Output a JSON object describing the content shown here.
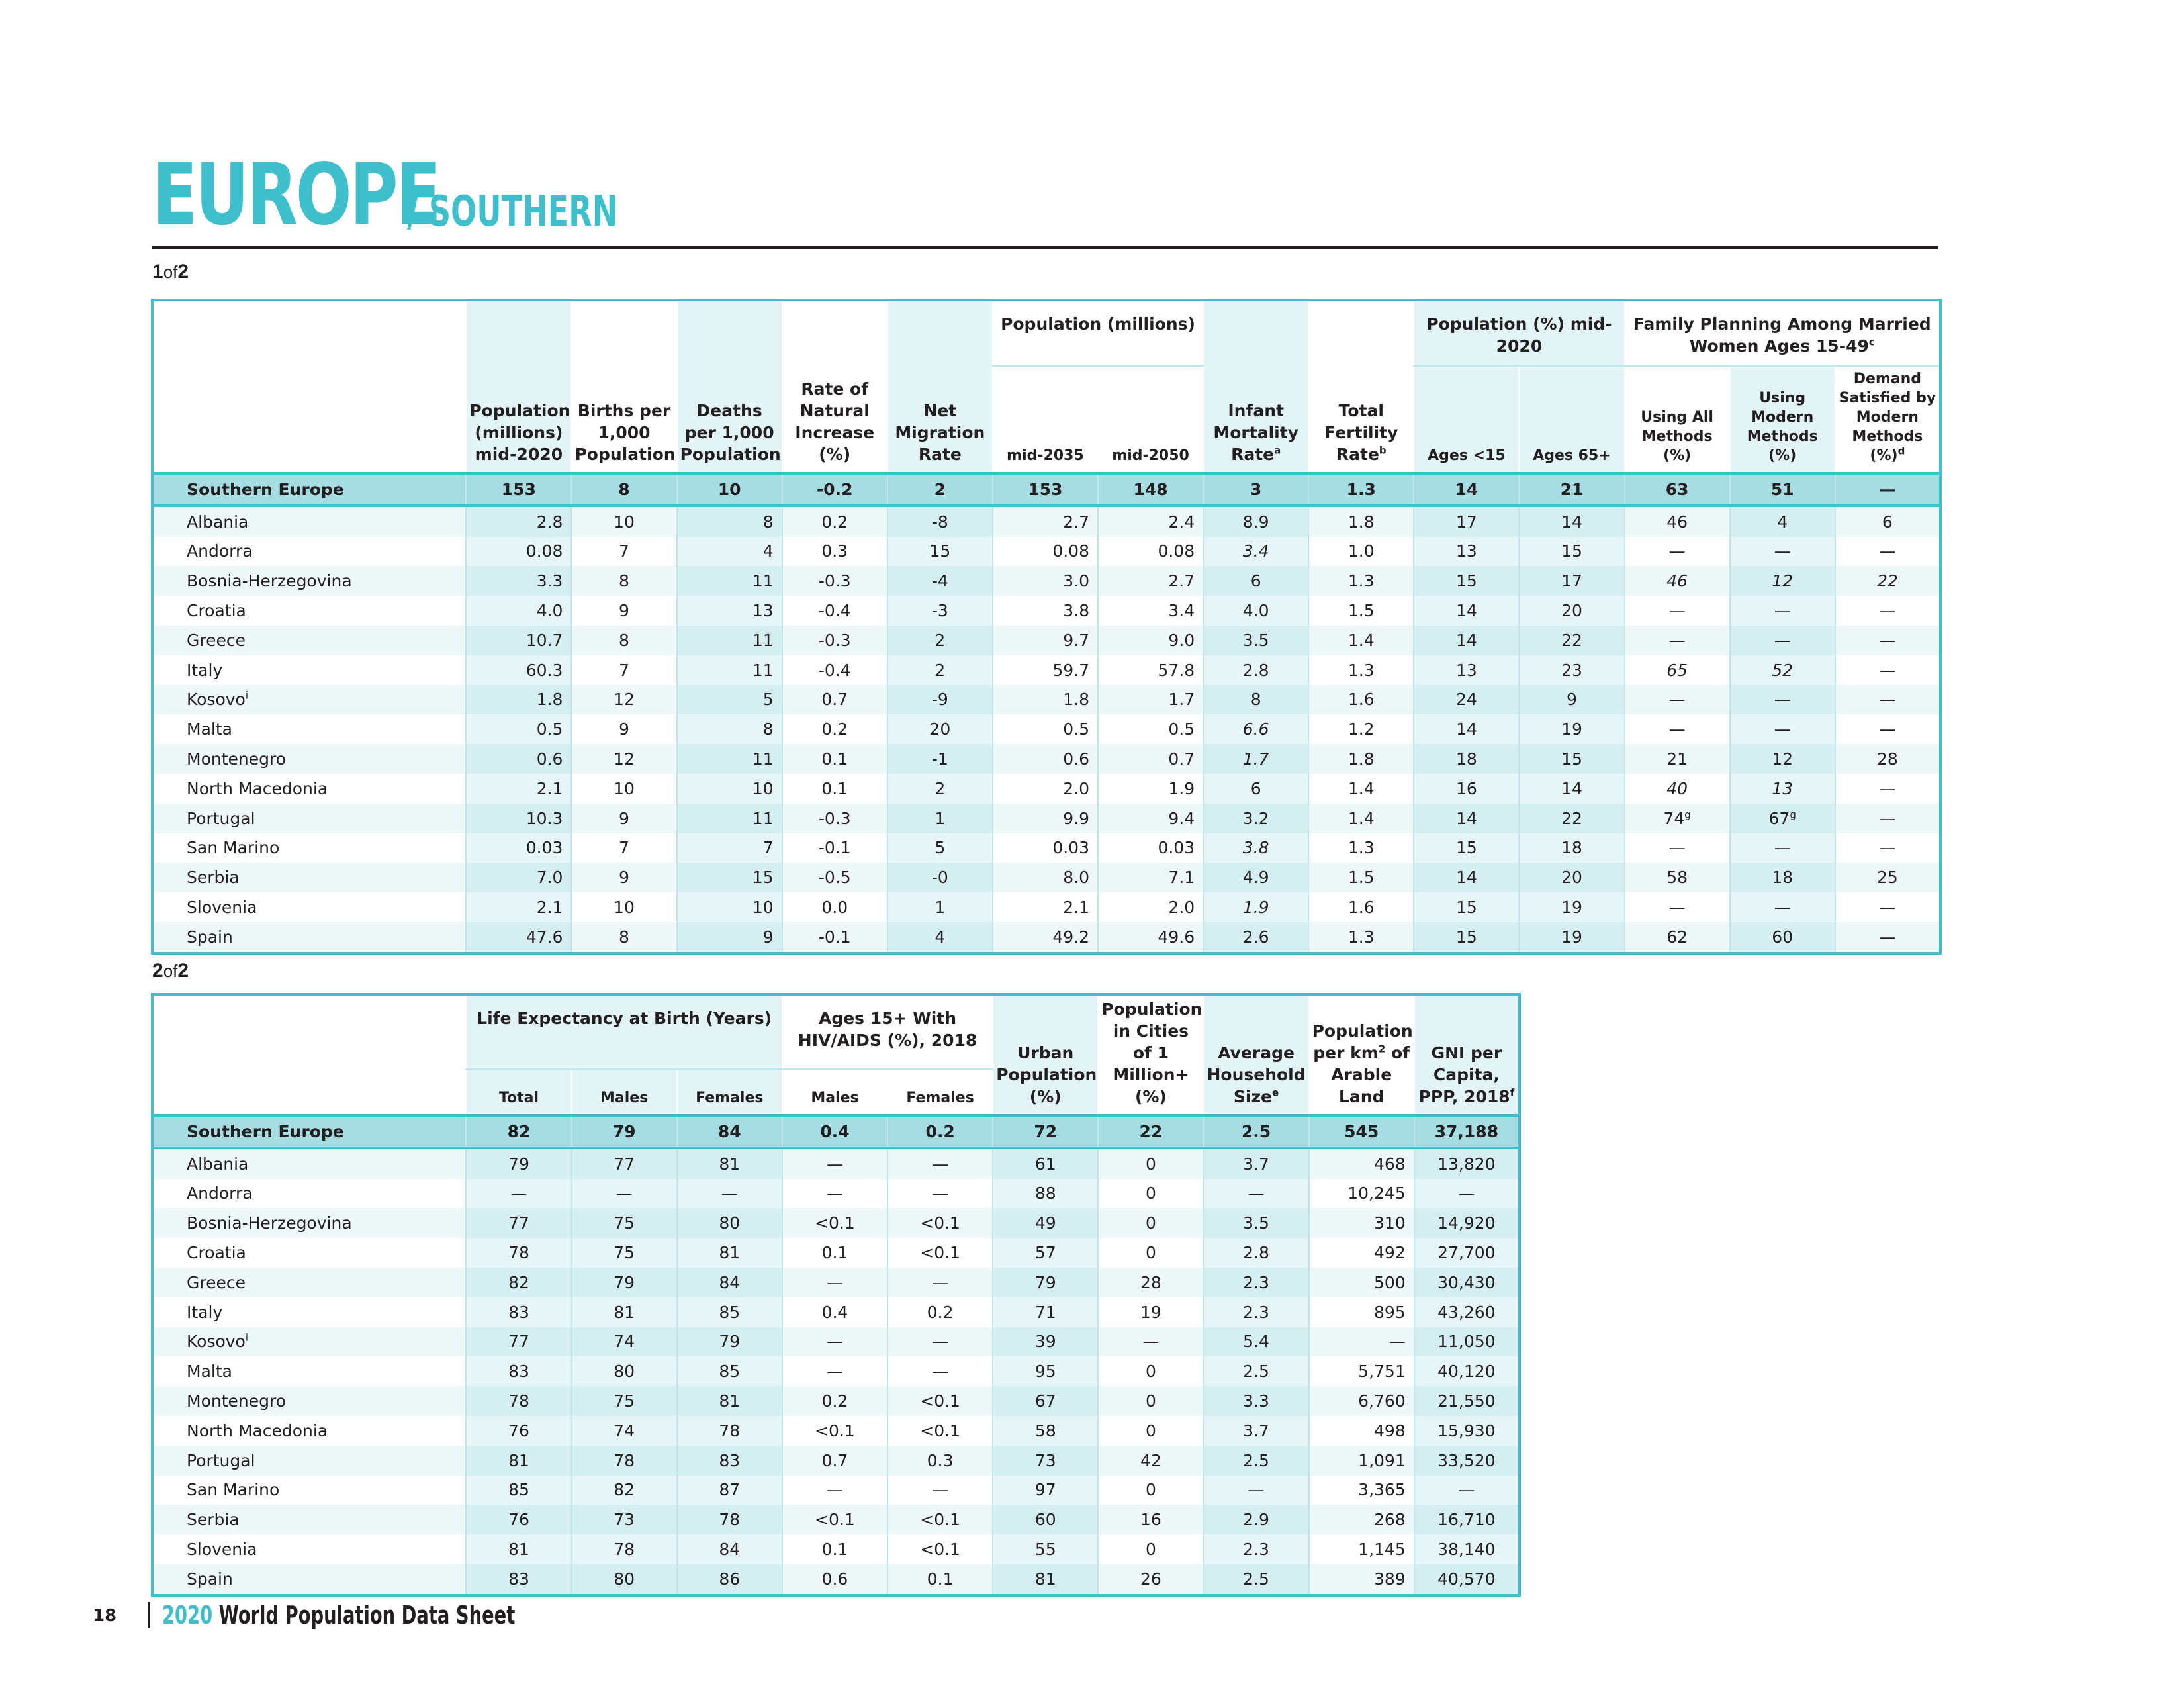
{
  "title": {
    "main": "EUROPE",
    "sub": "/ SOUTHERN"
  },
  "part1": {
    "num": "1",
    "of": "of",
    "total": "2"
  },
  "part2": {
    "num": "2",
    "of": "of",
    "total": "2"
  },
  "table1": {
    "headers": {
      "pop": "Population (millions) mid-2020",
      "births": "Births per 1,000 Population",
      "deaths": "Deaths per 1,000 Population",
      "rni": "Rate of Natural Increase (%)",
      "migration": "Net Migration Rate",
      "proj_group": "Population (millions)",
      "p2035": "mid-2035",
      "p2050": "mid-2050",
      "imr": "Infant Mortality Rate",
      "imr_sup": "a",
      "tfr": "Total Fertility Rate",
      "tfr_sup": "b",
      "age_group": "Population (%) mid-2020",
      "u15": "Ages <15",
      "o65": "Ages 65+",
      "fp_group": "Family Planning Among Married Women Ages 15-49",
      "fp_sup": "c",
      "all": "Using All Methods (%)",
      "modern": "Using Modern Methods (%)",
      "demand": "Demand Satisfied by Modern Methods (%)",
      "demand_sup": "d"
    },
    "region": [
      "Southern Europe",
      "153",
      "8",
      "10",
      "-0.2",
      "2",
      "153",
      "148",
      "3",
      "1.3",
      "14",
      "21",
      "63",
      "51",
      "—"
    ],
    "rows": [
      [
        "Albania",
        "2.8",
        "10",
        "8",
        "0.2",
        "-8",
        "2.7",
        "2.4",
        "8.9",
        "1.8",
        "17",
        "14",
        "46",
        "4",
        "6"
      ],
      [
        "Andorra",
        "0.08",
        "7",
        "4",
        "0.3",
        "15",
        "0.08",
        "0.08",
        "3.4",
        "1.0",
        "13",
        "15",
        "—",
        "—",
        "—"
      ],
      [
        "Bosnia-Herzegovina",
        "3.3",
        "8",
        "11",
        "-0.3",
        "-4",
        "3.0",
        "2.7",
        "6",
        "1.3",
        "15",
        "17",
        "46",
        "12",
        "22"
      ],
      [
        "Croatia",
        "4.0",
        "9",
        "13",
        "-0.4",
        "-3",
        "3.8",
        "3.4",
        "4.0",
        "1.5",
        "14",
        "20",
        "—",
        "—",
        "—"
      ],
      [
        "Greece",
        "10.7",
        "8",
        "11",
        "-0.3",
        "2",
        "9.7",
        "9.0",
        "3.5",
        "1.4",
        "14",
        "22",
        "—",
        "—",
        "—"
      ],
      [
        "Italy",
        "60.3",
        "7",
        "11",
        "-0.4",
        "2",
        "59.7",
        "57.8",
        "2.8",
        "1.3",
        "13",
        "23",
        "65",
        "52",
        "—"
      ],
      [
        "Kosovo",
        "1.8",
        "12",
        "5",
        "0.7",
        "-9",
        "1.8",
        "1.7",
        "8",
        "1.6",
        "24",
        "9",
        "—",
        "—",
        "—"
      ],
      [
        "Malta",
        "0.5",
        "9",
        "8",
        "0.2",
        "20",
        "0.5",
        "0.5",
        "6.6",
        "1.2",
        "14",
        "19",
        "—",
        "—",
        "—"
      ],
      [
        "Montenegro",
        "0.6",
        "12",
        "11",
        "0.1",
        "-1",
        "0.6",
        "0.7",
        "1.7",
        "1.8",
        "18",
        "15",
        "21",
        "12",
        "28"
      ],
      [
        "North Macedonia",
        "2.1",
        "10",
        "10",
        "0.1",
        "2",
        "2.0",
        "1.9",
        "6",
        "1.4",
        "16",
        "14",
        "40",
        "13",
        "—"
      ],
      [
        "Portugal",
        "10.3",
        "9",
        "11",
        "-0.3",
        "1",
        "9.9",
        "9.4",
        "3.2",
        "1.4",
        "14",
        "22",
        "74",
        "67",
        "—"
      ],
      [
        "San Marino",
        "0.03",
        "7",
        "7",
        "-0.1",
        "5",
        "0.03",
        "0.03",
        "3.8",
        "1.3",
        "15",
        "18",
        "—",
        "—",
        "—"
      ],
      [
        "Serbia",
        "7.0",
        "9",
        "15",
        "-0.5",
        "-0",
        "8.0",
        "7.1",
        "4.9",
        "1.5",
        "14",
        "20",
        "58",
        "18",
        "25"
      ],
      [
        "Slovenia",
        "2.1",
        "10",
        "10",
        "0.0",
        "1",
        "2.1",
        "2.0",
        "1.9",
        "1.6",
        "15",
        "19",
        "—",
        "—",
        "—"
      ],
      [
        "Spain",
        "47.6",
        "8",
        "9",
        "-0.1",
        "4",
        "49.2",
        "49.6",
        "2.6",
        "1.3",
        "15",
        "19",
        "62",
        "60",
        "—"
      ]
    ],
    "kosovo_sup": "i",
    "portugal_sup": "g"
  },
  "table2": {
    "headers": {
      "le_group": "Life Expectancy at Birth (Years)",
      "total": "Total",
      "males": "Males",
      "females": "Females",
      "hiv_group": "Ages 15+ With HIV/AIDS (%), 2018",
      "hiv_males": "Males",
      "hiv_females": "Females",
      "urban": "Urban Population (%)",
      "cities": "Population in Cities of 1 Million+ (%)",
      "household": "Average Household Size",
      "household_sup": "e",
      "density_a": "Population per km",
      "density_sup": "2",
      "density_b": "of Arable Land",
      "gni": "GNI per Capita, PPP, 2018",
      "gni_sup": "f"
    },
    "region": [
      "Southern Europe",
      "82",
      "79",
      "84",
      "0.4",
      "0.2",
      "72",
      "22",
      "2.5",
      "545",
      "37,188"
    ],
    "rows": [
      [
        "Albania",
        "79",
        "77",
        "81",
        "—",
        "—",
        "61",
        "0",
        "3.7",
        "468",
        "13,820"
      ],
      [
        "Andorra",
        "—",
        "—",
        "—",
        "—",
        "—",
        "88",
        "0",
        "—",
        "10,245",
        "—"
      ],
      [
        "Bosnia-Herzegovina",
        "77",
        "75",
        "80",
        "<0.1",
        "<0.1",
        "49",
        "0",
        "3.5",
        "310",
        "14,920"
      ],
      [
        "Croatia",
        "78",
        "75",
        "81",
        "0.1",
        "<0.1",
        "57",
        "0",
        "2.8",
        "492",
        "27,700"
      ],
      [
        "Greece",
        "82",
        "79",
        "84",
        "—",
        "—",
        "79",
        "28",
        "2.3",
        "500",
        "30,430"
      ],
      [
        "Italy",
        "83",
        "81",
        "85",
        "0.4",
        "0.2",
        "71",
        "19",
        "2.3",
        "895",
        "43,260"
      ],
      [
        "Kosovo",
        "77",
        "74",
        "79",
        "—",
        "—",
        "39",
        "—",
        "5.4",
        "—",
        "11,050"
      ],
      [
        "Malta",
        "83",
        "80",
        "85",
        "—",
        "—",
        "95",
        "0",
        "2.5",
        "5,751",
        "40,120"
      ],
      [
        "Montenegro",
        "78",
        "75",
        "81",
        "0.2",
        "<0.1",
        "67",
        "0",
        "3.3",
        "6,760",
        "21,550"
      ],
      [
        "North Macedonia",
        "76",
        "74",
        "78",
        "<0.1",
        "<0.1",
        "58",
        "0",
        "3.7",
        "498",
        "15,930"
      ],
      [
        "Portugal",
        "81",
        "78",
        "83",
        "0.7",
        "0.3",
        "73",
        "42",
        "2.5",
        "1,091",
        "33,520"
      ],
      [
        "San Marino",
        "85",
        "82",
        "87",
        "—",
        "—",
        "97",
        "0",
        "—",
        "3,365",
        "—"
      ],
      [
        "Serbia",
        "76",
        "73",
        "78",
        "<0.1",
        "<0.1",
        "60",
        "16",
        "2.9",
        "268",
        "16,710"
      ],
      [
        "Slovenia",
        "81",
        "78",
        "84",
        "0.1",
        "<0.1",
        "55",
        "0",
        "2.3",
        "1,145",
        "38,140"
      ],
      [
        "Spain",
        "83",
        "80",
        "86",
        "0.6",
        "0.1",
        "81",
        "26",
        "2.5",
        "389",
        "40,570"
      ]
    ],
    "kosovo_sup": "i"
  },
  "footer": {
    "page": "18",
    "year": "2020",
    "text": "World Population Data Sheet"
  }
}
